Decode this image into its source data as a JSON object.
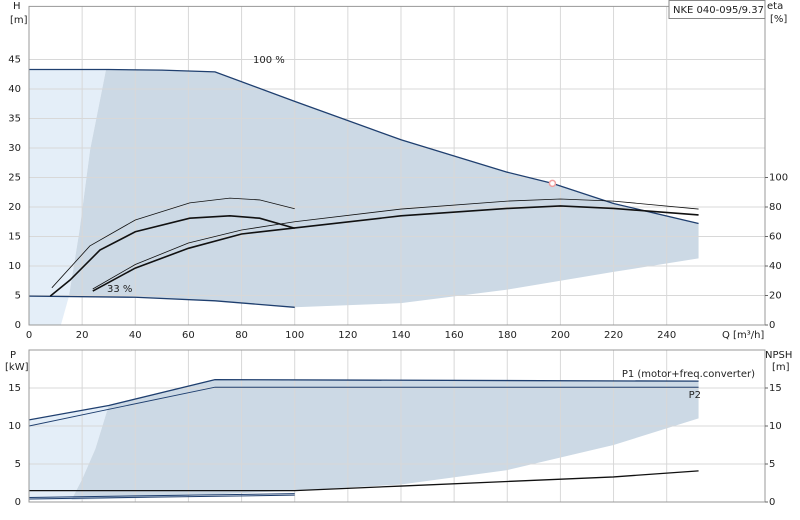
{
  "chart_data": [
    {
      "type": "line",
      "ylabel": "H",
      "yunit": "[m]",
      "y2label": "eta",
      "y2unit": "[%]",
      "xlabel": "Q [m³/h]",
      "box_label": "NKE 040-095/9.37",
      "xlim": [
        0,
        277
      ],
      "ylim": [
        0,
        54
      ],
      "y2lim": [
        0,
        216
      ],
      "xticks": [
        0,
        20,
        40,
        60,
        80,
        100,
        120,
        140,
        160,
        180,
        200,
        220,
        240
      ],
      "yticks": [
        0,
        5,
        10,
        15,
        20,
        25,
        30,
        35,
        40,
        45
      ],
      "y2ticks": [
        0,
        20,
        40,
        60,
        80,
        100
      ],
      "xtick_labels": true,
      "grid": true,
      "regions": [
        {
          "color": "#e4eef8",
          "x": [
            0,
            29,
            23,
            19,
            15,
            12,
            0
          ],
          "values": [
            43.3,
            43.3,
            29.7,
            16,
            4.8,
            0,
            0
          ]
        },
        {
          "color": "#ccd9e5",
          "x": [
            15,
            19,
            23,
            29,
            50,
            70,
            100,
            140,
            180,
            197,
            220,
            252,
            252,
            220,
            180,
            140,
            100,
            70,
            40,
            15
          ],
          "values": [
            4.8,
            16,
            29.7,
            43.3,
            43.2,
            42.9,
            37.9,
            31.4,
            25.9,
            24,
            20.6,
            17.2,
            11.3,
            9,
            6,
            3.7,
            3.0,
            4.1,
            4.7,
            4.8
          ]
        }
      ],
      "series": [
        {
          "color": "#1f3f6f",
          "width": 1.3,
          "axis": "y",
          "x": [
            0,
            30,
            50,
            70,
            100,
            140,
            180,
            197,
            220,
            252
          ],
          "values": [
            43.3,
            43.3,
            43.2,
            42.9,
            37.9,
            31.4,
            25.9,
            24,
            20.6,
            17.2
          ]
        },
        {
          "color": "#1f3f6f",
          "width": 1.3,
          "axis": "y",
          "x": [
            0,
            40,
            70,
            100
          ],
          "values": [
            4.9,
            4.7,
            4.1,
            3.0
          ]
        },
        {
          "color": "#111111",
          "width": 1.6,
          "axis": "y",
          "x": [
            8,
            15.4,
            26.7,
            40,
            60.5,
            75.6,
            86.8,
            100
          ],
          "values": [
            4.9,
            7.6,
            12.7,
            15.8,
            18.1,
            18.5,
            18.1,
            16.4
          ]
        },
        {
          "color": "#111111",
          "width": 0.8,
          "axis": "y",
          "x": [
            8.6,
            22.9,
            40,
            60.5,
            75.6,
            86.8,
            100
          ],
          "values": [
            6.3,
            13.4,
            17.8,
            20.7,
            21.5,
            21.2,
            19.7
          ]
        },
        {
          "color": "#111111",
          "width": 1.6,
          "axis": "y2",
          "x": [
            24,
            40,
            60,
            80,
            100,
            140,
            180,
            200,
            220,
            252
          ],
          "values": [
            23,
            38.6,
            52,
            61.7,
            65.8,
            74,
            79,
            80.7,
            79,
            74.6
          ]
        },
        {
          "color": "#111111",
          "width": 0.8,
          "axis": "y2",
          "x": [
            24,
            40,
            60,
            80,
            100,
            140,
            180,
            200,
            220,
            252
          ],
          "values": [
            24.4,
            41,
            55.6,
            64.4,
            70,
            78.6,
            84,
            85.4,
            84,
            78.6
          ]
        }
      ],
      "points": [
        {
          "x": 197,
          "y": 24,
          "color": "#f0a0a0"
        }
      ],
      "annotations": [
        "100 %",
        "33 %"
      ]
    },
    {
      "type": "line",
      "ylabel": "P",
      "yunit": "[kW]",
      "y2label": "NPSH",
      "y2unit": "[m]",
      "xlim": [
        0,
        277
      ],
      "ylim": [
        0,
        20
      ],
      "y2lim": [
        0,
        20
      ],
      "xticks": [
        0,
        20,
        40,
        60,
        80,
        100,
        120,
        140,
        160,
        180,
        200,
        220,
        240
      ],
      "yticks": [
        0,
        5,
        10,
        15
      ],
      "y2ticks": [
        0,
        5,
        10,
        15
      ],
      "xtick_labels": false,
      "grid": true,
      "regions": [
        {
          "color": "#e4eef8",
          "x": [
            0,
            30,
            25,
            20,
            16,
            0
          ],
          "values": [
            10.8,
            12.7,
            7,
            3,
            0.3,
            0.3
          ]
        },
        {
          "color": "#ccd9e5",
          "x": [
            30,
            70,
            252,
            252,
            220,
            180,
            140,
            100,
            40,
            16,
            20,
            25
          ],
          "values": [
            12.7,
            16.1,
            15.9,
            11.0,
            7.5,
            4.2,
            2.3,
            1.5,
            0.5,
            0.3,
            3,
            7
          ]
        }
      ],
      "series": [
        {
          "color": "#1f3f6f",
          "width": 1.3,
          "axis": "y",
          "x": [
            0,
            30,
            70,
            252
          ],
          "values": [
            10.8,
            12.7,
            16.1,
            15.9
          ]
        },
        {
          "color": "#1f3f6f",
          "width": 0.9,
          "axis": "y",
          "x": [
            0,
            30,
            70,
            252
          ],
          "values": [
            10.0,
            12.2,
            15.1,
            15.1
          ]
        },
        {
          "color": "#1f3f6f",
          "width": 1.0,
          "axis": "y",
          "x": [
            0,
            100
          ],
          "values": [
            0.6,
            1.1
          ]
        },
        {
          "color": "#1f3f6f",
          "width": 1.0,
          "axis": "y",
          "x": [
            0,
            100
          ],
          "values": [
            0.4,
            0.9
          ]
        },
        {
          "color": "#111111",
          "width": 1.3,
          "axis": "y2",
          "x": [
            0,
            100,
            140,
            180,
            220,
            252
          ],
          "values": [
            1.5,
            1.5,
            2.1,
            2.7,
            3.3,
            4.1
          ]
        }
      ],
      "annotations": [
        "P1 (motor+freq.converter)",
        "P2"
      ]
    }
  ]
}
